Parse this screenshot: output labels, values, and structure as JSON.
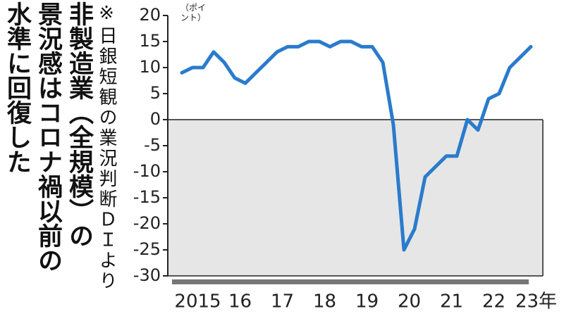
{
  "chart_data": {
    "type": "line",
    "title_lines": [
      "非製造業（全規模）の",
      "景況感はコロナ禍以前の",
      "水準に回復した"
    ],
    "source": "※日銀短観の業況判断ＤＩより",
    "y_unit": "（ポイント）",
    "categories": [
      "2015",
      null,
      null,
      null,
      "16",
      null,
      null,
      null,
      "17",
      null,
      null,
      null,
      "18",
      null,
      null,
      null,
      "19",
      null,
      null,
      null,
      "20",
      null,
      null,
      null,
      "21",
      null,
      null,
      null,
      "22",
      null,
      null,
      null,
      "23年",
      null
    ],
    "series": [
      {
        "color": "#2a7bcc",
        "values": [
          9,
          10,
          10,
          13,
          11,
          8,
          7,
          9,
          11,
          13,
          14,
          14,
          15,
          15,
          14,
          15,
          15,
          14,
          14,
          11,
          -1,
          -25,
          -21,
          -11,
          -9,
          -7,
          -7,
          0,
          -2,
          4,
          5,
          10,
          12,
          14
        ]
      }
    ],
    "ylim": [
      -30,
      20
    ],
    "yticks": [
      20,
      15,
      10,
      5,
      0,
      -5,
      -10,
      -15,
      -20,
      -25,
      -30
    ],
    "negative_shade": "#e6e6e6"
  }
}
